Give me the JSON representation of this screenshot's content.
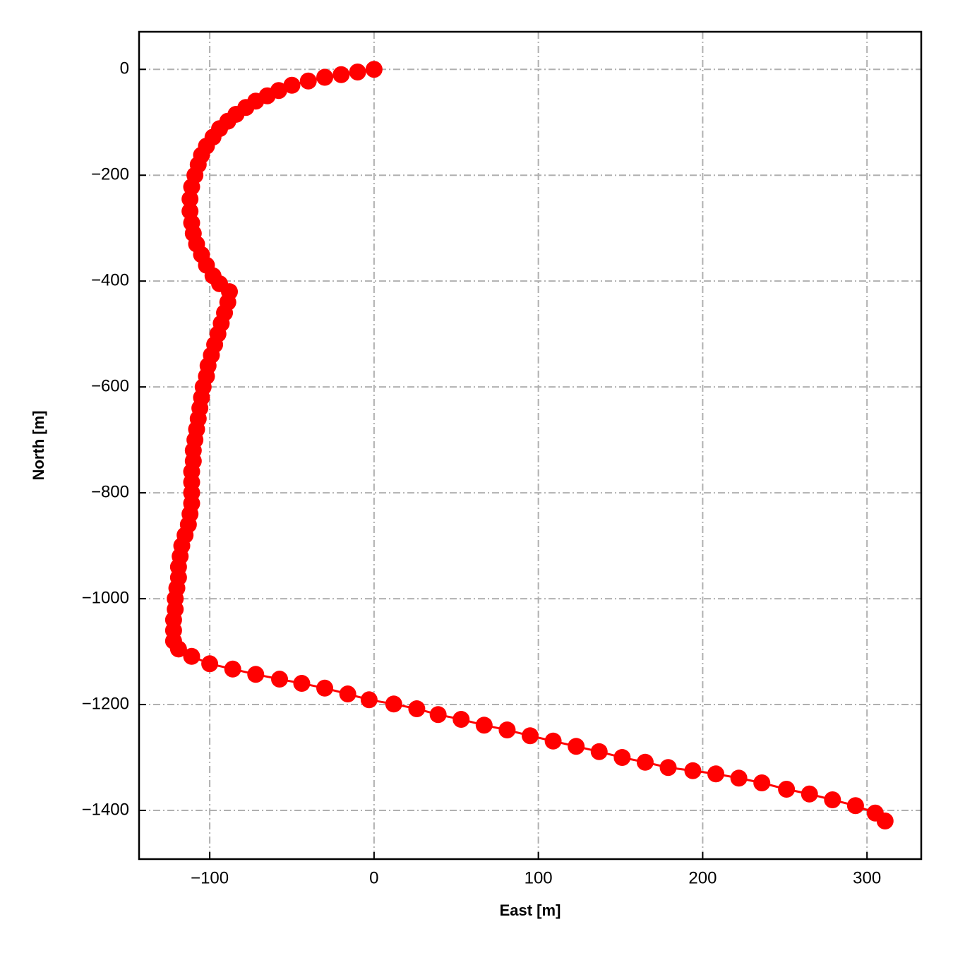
{
  "chart_data": {
    "type": "line",
    "xlabel": "East [m]",
    "ylabel": "North [m]",
    "x": [
      0,
      -10,
      -20,
      -30,
      -40,
      -50,
      -58,
      -65,
      -72,
      -78,
      -84,
      -89,
      -94,
      -98,
      -102,
      -105,
      -107,
      -109,
      -111,
      -112,
      -112,
      -111,
      -110,
      -108,
      -105,
      -102,
      -98,
      -94,
      -88,
      -89,
      -91,
      -93,
      -95,
      -97,
      -99,
      -101,
      -102,
      -104,
      -105,
      -106,
      -107,
      -108,
      -109,
      -110,
      -110,
      -111,
      -111,
      -111,
      -111,
      -112,
      -113,
      -115,
      -117,
      -118,
      -119,
      -119,
      -120,
      -121,
      -121,
      -122,
      -122,
      -122,
      -119,
      -111,
      -100,
      -86,
      -72,
      -57.5,
      -44,
      -30,
      -16,
      -3,
      12,
      26,
      39,
      53,
      67,
      81,
      95,
      109,
      123,
      137,
      151,
      165,
      179,
      194,
      208,
      222,
      236,
      251,
      265,
      279,
      293,
      305,
      311
    ],
    "values": [
      0,
      -5,
      -10,
      -15,
      -22,
      -30,
      -40,
      -50,
      -60,
      -72,
      -85,
      -98,
      -112,
      -128,
      -145,
      -162,
      -180,
      -200,
      -222,
      -245,
      -268,
      -290,
      -310,
      -330,
      -350,
      -370,
      -390,
      -405,
      -420,
      -440,
      -460,
      -480,
      -500,
      -520,
      -540,
      -560,
      -580,
      -600,
      -620,
      -640,
      -660,
      -680,
      -700,
      -720,
      -740,
      -760,
      -780,
      -800,
      -820,
      -840,
      -860,
      -880,
      -900,
      -920,
      -940,
      -960,
      -980,
      -1000,
      -1020,
      -1040,
      -1060,
      -1080,
      -1095,
      -1109,
      -1123,
      -1133,
      -1143,
      -1152,
      -1160,
      -1169,
      -1180,
      -1191,
      -1199,
      -1208,
      -1219,
      -1228,
      -1239,
      -1248,
      -1259,
      -1269,
      -1279,
      -1289,
      -1300,
      -1309,
      -1319,
      -1325,
      -1331,
      -1339,
      -1348,
      -1360,
      -1369,
      -1380,
      -1391,
      -1405,
      -1420
    ],
    "color": "#ff0000",
    "xlim": [
      -143,
      333
    ],
    "ylim": [
      -1492,
      71
    ],
    "xticks": [
      {
        "value": -100,
        "label": "−100"
      },
      0,
      100,
      200,
      300
    ],
    "yticks": [
      0,
      {
        "value": -200,
        "label": "−200"
      },
      {
        "value": -400,
        "label": "−400"
      },
      {
        "value": -600,
        "label": "−600"
      },
      {
        "value": -800,
        "label": "−800"
      },
      {
        "value": -1000,
        "label": "−1000"
      },
      {
        "value": -1200,
        "label": "−1200"
      },
      {
        "value": -1400,
        "label": "−1400"
      }
    ],
    "grid": true
  }
}
